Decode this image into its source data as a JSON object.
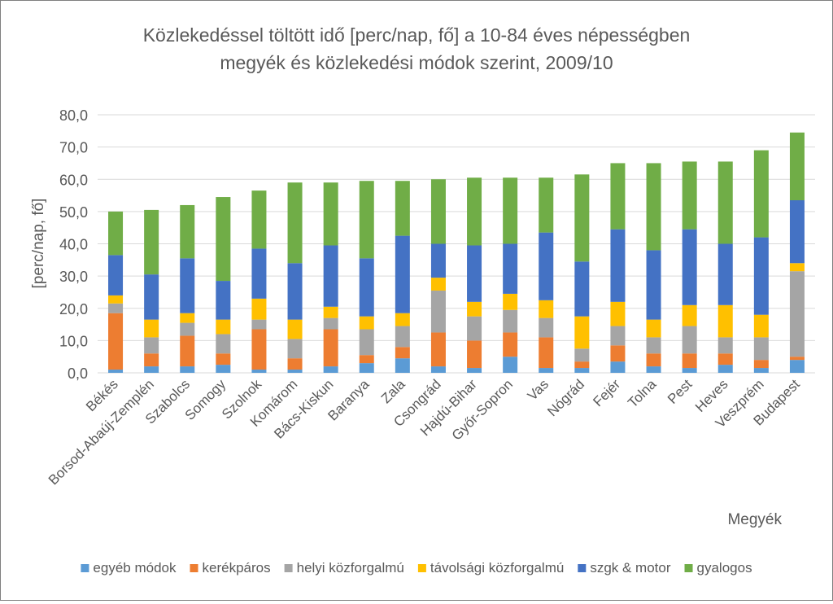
{
  "chart_data": {
    "type": "bar",
    "stacked": true,
    "title_lines": [
      "Közlekedéssel töltött idő [perc/nap, fő] a 10-84 éves népességben",
      "megyék és közlekedési módok szerint, 2009/10"
    ],
    "xlabel": "Megyék",
    "ylabel": "[perc/nap, fő]",
    "ylim": [
      0,
      80
    ],
    "yticks": [
      "0,0",
      "10,0",
      "20,0",
      "30,0",
      "40,0",
      "50,0",
      "60,0",
      "70,0",
      "80,0"
    ],
    "grid": true,
    "legend_position": "bottom",
    "categories": [
      "Békés",
      "Borsod-Abaúj-Zemplén",
      "Szabolcs",
      "Somogy",
      "Szolnok",
      "Komárom",
      "Bács-Kiskun",
      "Baranya",
      "Zala",
      "Csongrád",
      "Hajdú-Bihar",
      "Győr-Sopron",
      "Vas",
      "Nógrád",
      "Fejér",
      "Tolna",
      "Pest",
      "Heves",
      "Veszprém",
      "Budapest"
    ],
    "series": [
      {
        "name": "egyéb módok",
        "color": "#5b9bd5",
        "values": [
          1.0,
          2.0,
          2.0,
          2.5,
          1.0,
          1.0,
          2.0,
          3.0,
          4.5,
          2.0,
          1.5,
          5.0,
          1.5,
          1.5,
          3.5,
          2.0,
          1.5,
          2.5,
          1.5,
          4.0
        ]
      },
      {
        "name": "kerékpáros",
        "color": "#ed7d31",
        "values": [
          17.5,
          4.0,
          9.5,
          3.5,
          12.5,
          3.5,
          11.5,
          2.5,
          3.5,
          10.5,
          8.5,
          7.5,
          9.5,
          2.0,
          5.0,
          4.0,
          4.5,
          3.5,
          2.5,
          1.0
        ]
      },
      {
        "name": "helyi közforgalmú",
        "color": "#a5a5a5",
        "values": [
          3.0,
          5.0,
          4.0,
          6.0,
          3.0,
          6.0,
          3.5,
          8.0,
          6.5,
          13.0,
          7.5,
          7.0,
          6.0,
          4.0,
          6.0,
          5.0,
          8.5,
          5.0,
          7.0,
          26.5
        ]
      },
      {
        "name": "távolsági közforgalmú",
        "color": "#ffc000",
        "values": [
          2.5,
          5.5,
          3.0,
          4.5,
          6.5,
          6.0,
          3.5,
          4.0,
          4.0,
          4.0,
          4.5,
          5.0,
          5.5,
          10.0,
          7.5,
          5.5,
          6.5,
          10.0,
          7.0,
          2.5
        ]
      },
      {
        "name": "szgk & motor",
        "color": "#4472c4",
        "values": [
          12.5,
          14.0,
          17.0,
          12.0,
          15.5,
          17.5,
          19.0,
          18.0,
          24.0,
          10.5,
          17.5,
          15.5,
          21.0,
          17.0,
          22.5,
          21.5,
          23.5,
          19.0,
          24.0,
          19.5
        ]
      },
      {
        "name": "gyalogos",
        "color": "#70ad47",
        "values": [
          13.5,
          20.0,
          16.5,
          26.0,
          18.0,
          25.0,
          19.5,
          24.0,
          17.0,
          20.0,
          21.0,
          20.5,
          17.0,
          27.0,
          20.5,
          27.0,
          21.0,
          25.5,
          27.0,
          21.0
        ]
      }
    ]
  }
}
